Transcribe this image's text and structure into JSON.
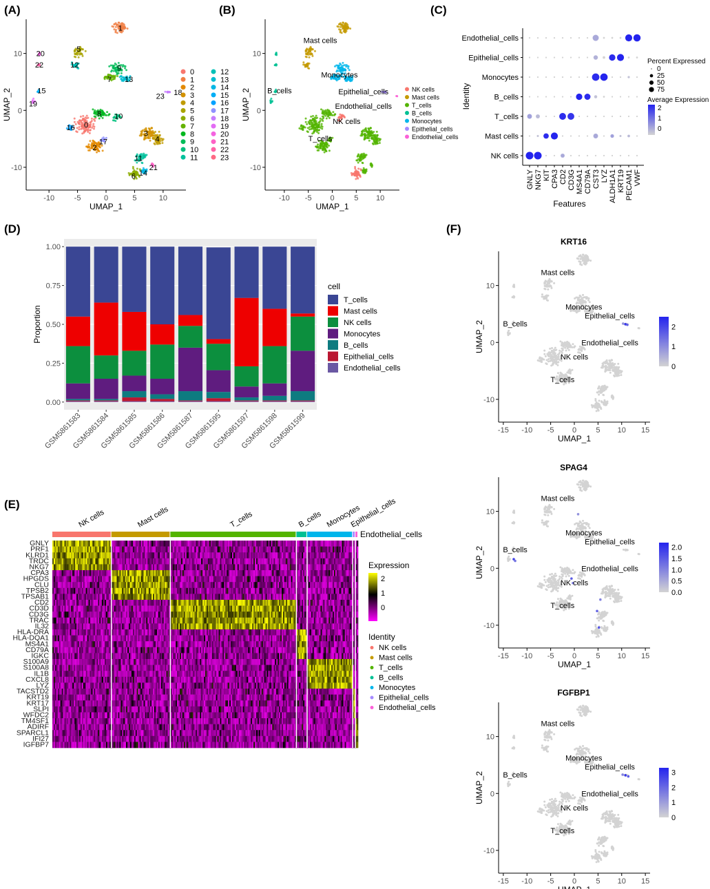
{
  "panel_labels": [
    "(A)",
    "(B)",
    "(C)",
    "(D)",
    "(E)",
    "(F)"
  ],
  "colors": {
    "NK cells": "#f8766d",
    "Mast cells": "#c49a00",
    "T_cells": "#53b400",
    "B_cells": "#00c094",
    "Monocytes": "#00b6eb",
    "Epithelial_cells": "#a58aff",
    "Endothelial_cells": "#fb61d7"
  },
  "chart_data": [
    {
      "panel": "A",
      "type": "scatter",
      "xlabel": "UMAP_1",
      "ylabel": "UMAP_2",
      "xticks": [
        -10,
        -5,
        0,
        5,
        10
      ],
      "yticks": [
        10,
        0,
        -10
      ],
      "xlim": [
        -14,
        14
      ],
      "ylim": [
        -14,
        16
      ],
      "legend": [
        "0",
        "1",
        "2",
        "3",
        "4",
        "5",
        "6",
        "7",
        "8",
        "9",
        "10",
        "11",
        "12",
        "13",
        "14",
        "15",
        "16",
        "17",
        "18",
        "19",
        "20",
        "21",
        "22",
        "23"
      ],
      "legend_colors": [
        "#f8766d",
        "#f07e43",
        "#e38900",
        "#d39200",
        "#c09b00",
        "#a9a400",
        "#8cab00",
        "#64b200",
        "#00b81f",
        "#00bc59",
        "#00bf7d",
        "#00c19c",
        "#00c0b7",
        "#00bdd0",
        "#00b7e5",
        "#00aef6",
        "#00a1ff",
        "#8f91ff",
        "#c77cff",
        "#e36cf4",
        "#f463e0",
        "#fd61c5",
        "#ff62a6",
        "#ff6984"
      ],
      "cluster_labels": [
        {
          "id": "0",
          "x": -3.5,
          "y": -2.5
        },
        {
          "id": "1",
          "x": 2.5,
          "y": 14.5
        },
        {
          "id": "2",
          "x": -2,
          "y": -6.5
        },
        {
          "id": "3",
          "x": 7,
          "y": -4
        },
        {
          "id": "4",
          "x": 9,
          "y": -5
        },
        {
          "id": "5",
          "x": -4.8,
          "y": 10.8
        },
        {
          "id": "6",
          "x": 4.8,
          "y": -11.5
        },
        {
          "id": "7",
          "x": 0.6,
          "y": 5.5
        },
        {
          "id": "8",
          "x": -1.2,
          "y": -0.5
        },
        {
          "id": "9",
          "x": 2.3,
          "y": 7.5
        },
        {
          "id": "10",
          "x": 2.2,
          "y": -1
        },
        {
          "id": "11",
          "x": 5.7,
          "y": -8.4
        },
        {
          "id": "12",
          "x": -5.5,
          "y": 8
        },
        {
          "id": "13",
          "x": 4,
          "y": 5.5
        },
        {
          "id": "14",
          "x": 6.5,
          "y": -11
        },
        {
          "id": "15",
          "x": -11.3,
          "y": 3.5
        },
        {
          "id": "16",
          "x": -6.2,
          "y": -3
        },
        {
          "id": "17",
          "x": -0.5,
          "y": -5.5
        },
        {
          "id": "18",
          "x": 12.6,
          "y": 3.2
        },
        {
          "id": "19",
          "x": -12.8,
          "y": 1.2
        },
        {
          "id": "20",
          "x": -11.5,
          "y": 10
        },
        {
          "id": "21",
          "x": 8.3,
          "y": -10
        },
        {
          "id": "22",
          "x": -11.7,
          "y": 8
        },
        {
          "id": "23",
          "x": 9.5,
          "y": 2.5
        }
      ]
    },
    {
      "panel": "B",
      "type": "scatter",
      "xlabel": "UMAP_1",
      "ylabel": "UMAP_2",
      "xticks": [
        -10,
        -5,
        0,
        5,
        10
      ],
      "yticks": [
        10,
        0,
        -10
      ],
      "legend": [
        "NK cells",
        "Mast cells",
        "T_cells",
        "B_cells",
        "Monocytes",
        "Epithelial_cells",
        "Endothelial_cells"
      ],
      "annotations": [
        {
          "text": "Mast cells",
          "x": -2.5,
          "y": 11.8
        },
        {
          "text": "Monocytes",
          "x": 1.5,
          "y": 5.8
        },
        {
          "text": "B_cells",
          "x": -11,
          "y": 3
        },
        {
          "text": "Epithelial_cells",
          "x": 6.5,
          "y": 2.8
        },
        {
          "text": "Endothelial_cells",
          "x": 6.5,
          "y": 0.3
        },
        {
          "text": "NK cells",
          "x": 3,
          "y": -2.4
        },
        {
          "text": "T_cells",
          "x": -2.5,
          "y": -5.4
        }
      ]
    },
    {
      "panel": "C",
      "type": "dotplot",
      "xlabel": "Features",
      "ylabel": "Identity",
      "features": [
        "GNLY",
        "NKG7",
        "KIT",
        "CPA3",
        "CD2",
        "CD3G",
        "MS4A1",
        "CD79A",
        "CST3",
        "LYZ",
        "ALDH1A1",
        "KRT19",
        "PECAM1",
        "VWF"
      ],
      "identities": [
        "Endothelial_cells",
        "Epithelial_cells",
        "Monocytes",
        "B_cells",
        "T_cells",
        "Mast cells",
        "NK cells"
      ],
      "size_legend_title": "Percent Expressed",
      "size_legend": [
        0,
        25,
        50,
        75
      ],
      "color_legend_title": "Average Expression",
      "color_legend": [
        2,
        1,
        0
      ],
      "percent_expressed": [
        [
          1,
          1,
          1,
          1,
          1,
          1,
          1,
          1,
          55,
          2,
          2,
          2,
          75,
          80
        ],
        [
          1,
          1,
          1,
          1,
          1,
          1,
          1,
          1,
          25,
          6,
          60,
          75,
          2,
          2
        ],
        [
          1,
          1,
          1,
          1,
          1,
          1,
          1,
          1,
          85,
          85,
          1,
          1,
          4,
          1
        ],
        [
          1,
          1,
          1,
          1,
          1,
          1,
          60,
          55,
          10,
          2,
          1,
          1,
          1,
          1
        ],
        [
          30,
          20,
          1,
          1,
          70,
          70,
          1,
          1,
          1,
          1,
          1,
          1,
          1,
          1
        ],
        [
          1,
          3,
          40,
          75,
          1,
          1,
          1,
          1,
          30,
          1,
          15,
          3,
          6,
          1
        ],
        [
          90,
          90,
          1,
          1,
          20,
          1,
          1,
          1,
          1,
          1,
          1,
          1,
          1,
          1
        ]
      ],
      "average_expression": [
        [
          0,
          0,
          0,
          0,
          0,
          0,
          0,
          0,
          0.5,
          0,
          0,
          0,
          2.1,
          2.1
        ],
        [
          0,
          0,
          0,
          0,
          0,
          0,
          0,
          0,
          0.4,
          0,
          2.0,
          2.1,
          0,
          0
        ],
        [
          0,
          0,
          0,
          0,
          0,
          0,
          0,
          0,
          2.0,
          2.1,
          0,
          0,
          0.2,
          0
        ],
        [
          0,
          0,
          0,
          0,
          0,
          0,
          2.1,
          2.0,
          0.2,
          0,
          0,
          0,
          0,
          0
        ],
        [
          0.6,
          0.3,
          0,
          0,
          2.0,
          1.9,
          0,
          0,
          0,
          0,
          0,
          0,
          0,
          0
        ],
        [
          0,
          0.2,
          2.0,
          2.1,
          0,
          0,
          0,
          0,
          0.5,
          0,
          0.6,
          0.2,
          0.3,
          0
        ],
        [
          2.1,
          2.1,
          0,
          0,
          0.5,
          0,
          0,
          0,
          0,
          0,
          0,
          0,
          0,
          0
        ]
      ]
    },
    {
      "panel": "D",
      "type": "bar",
      "stacked": true,
      "ylabel": "Proportion",
      "xlabel": "",
      "ylim": [
        0,
        1
      ],
      "yticks": [
        "0.00",
        "0.25",
        "0.50",
        "0.75",
        "1.00"
      ],
      "legend_title": "cell",
      "categories": [
        "GSM5861583",
        "GSM5861584",
        "GSM5861585",
        "GSM5861586",
        "GSM5861587",
        "GSM5861595",
        "GSM5861597",
        "GSM5861598",
        "GSM5861599"
      ],
      "series": [
        {
          "name": "T_cells",
          "color": "#3a4694",
          "values": [
            0.45,
            0.36,
            0.42,
            0.5,
            0.44,
            0.59,
            0.33,
            0.4,
            0.43
          ]
        },
        {
          "name": "Mast cells",
          "color": "#ee0000",
          "values": [
            0.19,
            0.34,
            0.25,
            0.13,
            0.07,
            0.03,
            0.44,
            0.24,
            0.02
          ]
        },
        {
          "name": "NK cells",
          "color": "#0c8f3e",
          "values": [
            0.24,
            0.15,
            0.16,
            0.22,
            0.14,
            0.17,
            0.13,
            0.24,
            0.22
          ]
        },
        {
          "name": "Monocytes",
          "color": "#5f1c7f",
          "values": [
            0.1,
            0.13,
            0.1,
            0.1,
            0.28,
            0.14,
            0.07,
            0.08,
            0.26
          ]
        },
        {
          "name": "B_cells",
          "color": "#0e7b80",
          "values": [
            0.01,
            0.01,
            0.04,
            0.03,
            0.06,
            0.04,
            0.02,
            0.03,
            0.06
          ]
        },
        {
          "name": "Epithelial_cells",
          "color": "#ba1731",
          "values": [
            0.005,
            0.005,
            0.025,
            0.015,
            0.005,
            0.02,
            0.005,
            0.005,
            0.005
          ]
        },
        {
          "name": "Endothelial_cells",
          "color": "#6a58a3",
          "values": [
            0.005,
            0.005,
            0.005,
            0.005,
            0.005,
            0.005,
            0.005,
            0.005,
            0.005
          ]
        }
      ]
    },
    {
      "panel": "E",
      "type": "heatmap",
      "groups": [
        {
          "name": "NK cells",
          "color": "#f8766d",
          "size": 22
        },
        {
          "name": "Mast cells",
          "color": "#c49a00",
          "size": 22
        },
        {
          "name": "T_cells",
          "color": "#53b400",
          "size": 47
        },
        {
          "name": "B_cells",
          "color": "#00c094",
          "size": 4
        },
        {
          "name": "Monocytes",
          "color": "#00b6eb",
          "size": 17
        },
        {
          "name": "Epithelial_cells",
          "color": "#a58aff",
          "size": 1
        },
        {
          "name": "Endothelial_cells",
          "color": "#fb61d7",
          "size": 1
        }
      ],
      "genes": [
        "GNLY",
        "PRF1",
        "KLRD1",
        "TRDC",
        "NKG7",
        "CPA3",
        "HPGDS",
        "CLU",
        "TPSB2",
        "TPSAB1",
        "CD2",
        "CD3D",
        "CD3G",
        "TRAC",
        "IL32",
        "HLA-DRA",
        "HLA-DQA1",
        "MS4A1",
        "CD79A",
        "IGKC",
        "S100A9",
        "S100A8",
        "IL1B",
        "CXCL8",
        "LYZ",
        "TACSTD2",
        "KRT19",
        "KRT17",
        "SLPI",
        "WFDC2",
        "TM4SF1",
        "ADIRF",
        "SPARCL1",
        "IFI27",
        "IGFBP7"
      ],
      "gene_marker_group": [
        0,
        0,
        0,
        0,
        0,
        1,
        1,
        1,
        1,
        1,
        2,
        2,
        2,
        2,
        2,
        3,
        3,
        3,
        3,
        3,
        4,
        4,
        4,
        4,
        4,
        5,
        5,
        5,
        5,
        5,
        6,
        6,
        6,
        6,
        6
      ],
      "legend_title": "Expression",
      "legend_ticks": [
        2,
        1,
        0
      ],
      "identity_title": "Identity",
      "identity_legend": [
        "NK cells",
        "Mast cells",
        "T_cells",
        "B_cells",
        "Monocytes",
        "Epithelial_cells",
        "Endothelial_cells"
      ]
    },
    {
      "panel": "F",
      "type": "scatter",
      "subplots": [
        {
          "title": "KRT16",
          "legend_ticks": [
            "2",
            "1",
            "0"
          ],
          "legend_values": [
            2,
            1,
            0
          ],
          "max": 2.5
        },
        {
          "title": "SPAG4",
          "legend_ticks": [
            "2.0",
            "1.5",
            "1.0",
            "0.5",
            "0.0"
          ],
          "legend_values": [
            2.0,
            1.5,
            1.0,
            0.5,
            0.0
          ],
          "max": 2.2
        },
        {
          "title": "FGFBP1",
          "legend_ticks": [
            "3",
            "2",
            "1",
            "0"
          ],
          "legend_values": [
            3,
            2,
            1,
            0
          ],
          "max": 3.3
        }
      ],
      "xlabel": "UMAP_1",
      "ylabel": "UMAP_2",
      "xticks": [
        -15,
        -10,
        -5,
        0,
        5,
        10,
        15
      ],
      "yticks": [
        10,
        0,
        -10
      ],
      "annotations": [
        {
          "text": "Mast cells",
          "x": -3.5,
          "y": 11.8
        },
        {
          "text": "Monocytes",
          "x": 2,
          "y": 5.8
        },
        {
          "text": "Epithelial_cells",
          "x": 7.5,
          "y": 4.2
        },
        {
          "text": "B_cells",
          "x": -12.5,
          "y": 2.8
        },
        {
          "text": "Endothelial_cells",
          "x": 7.5,
          "y": -0.5
        },
        {
          "text": "NK cells",
          "x": 0,
          "y": -3
        },
        {
          "text": "T_cells",
          "x": -2.5,
          "y": -7
        }
      ]
    }
  ]
}
